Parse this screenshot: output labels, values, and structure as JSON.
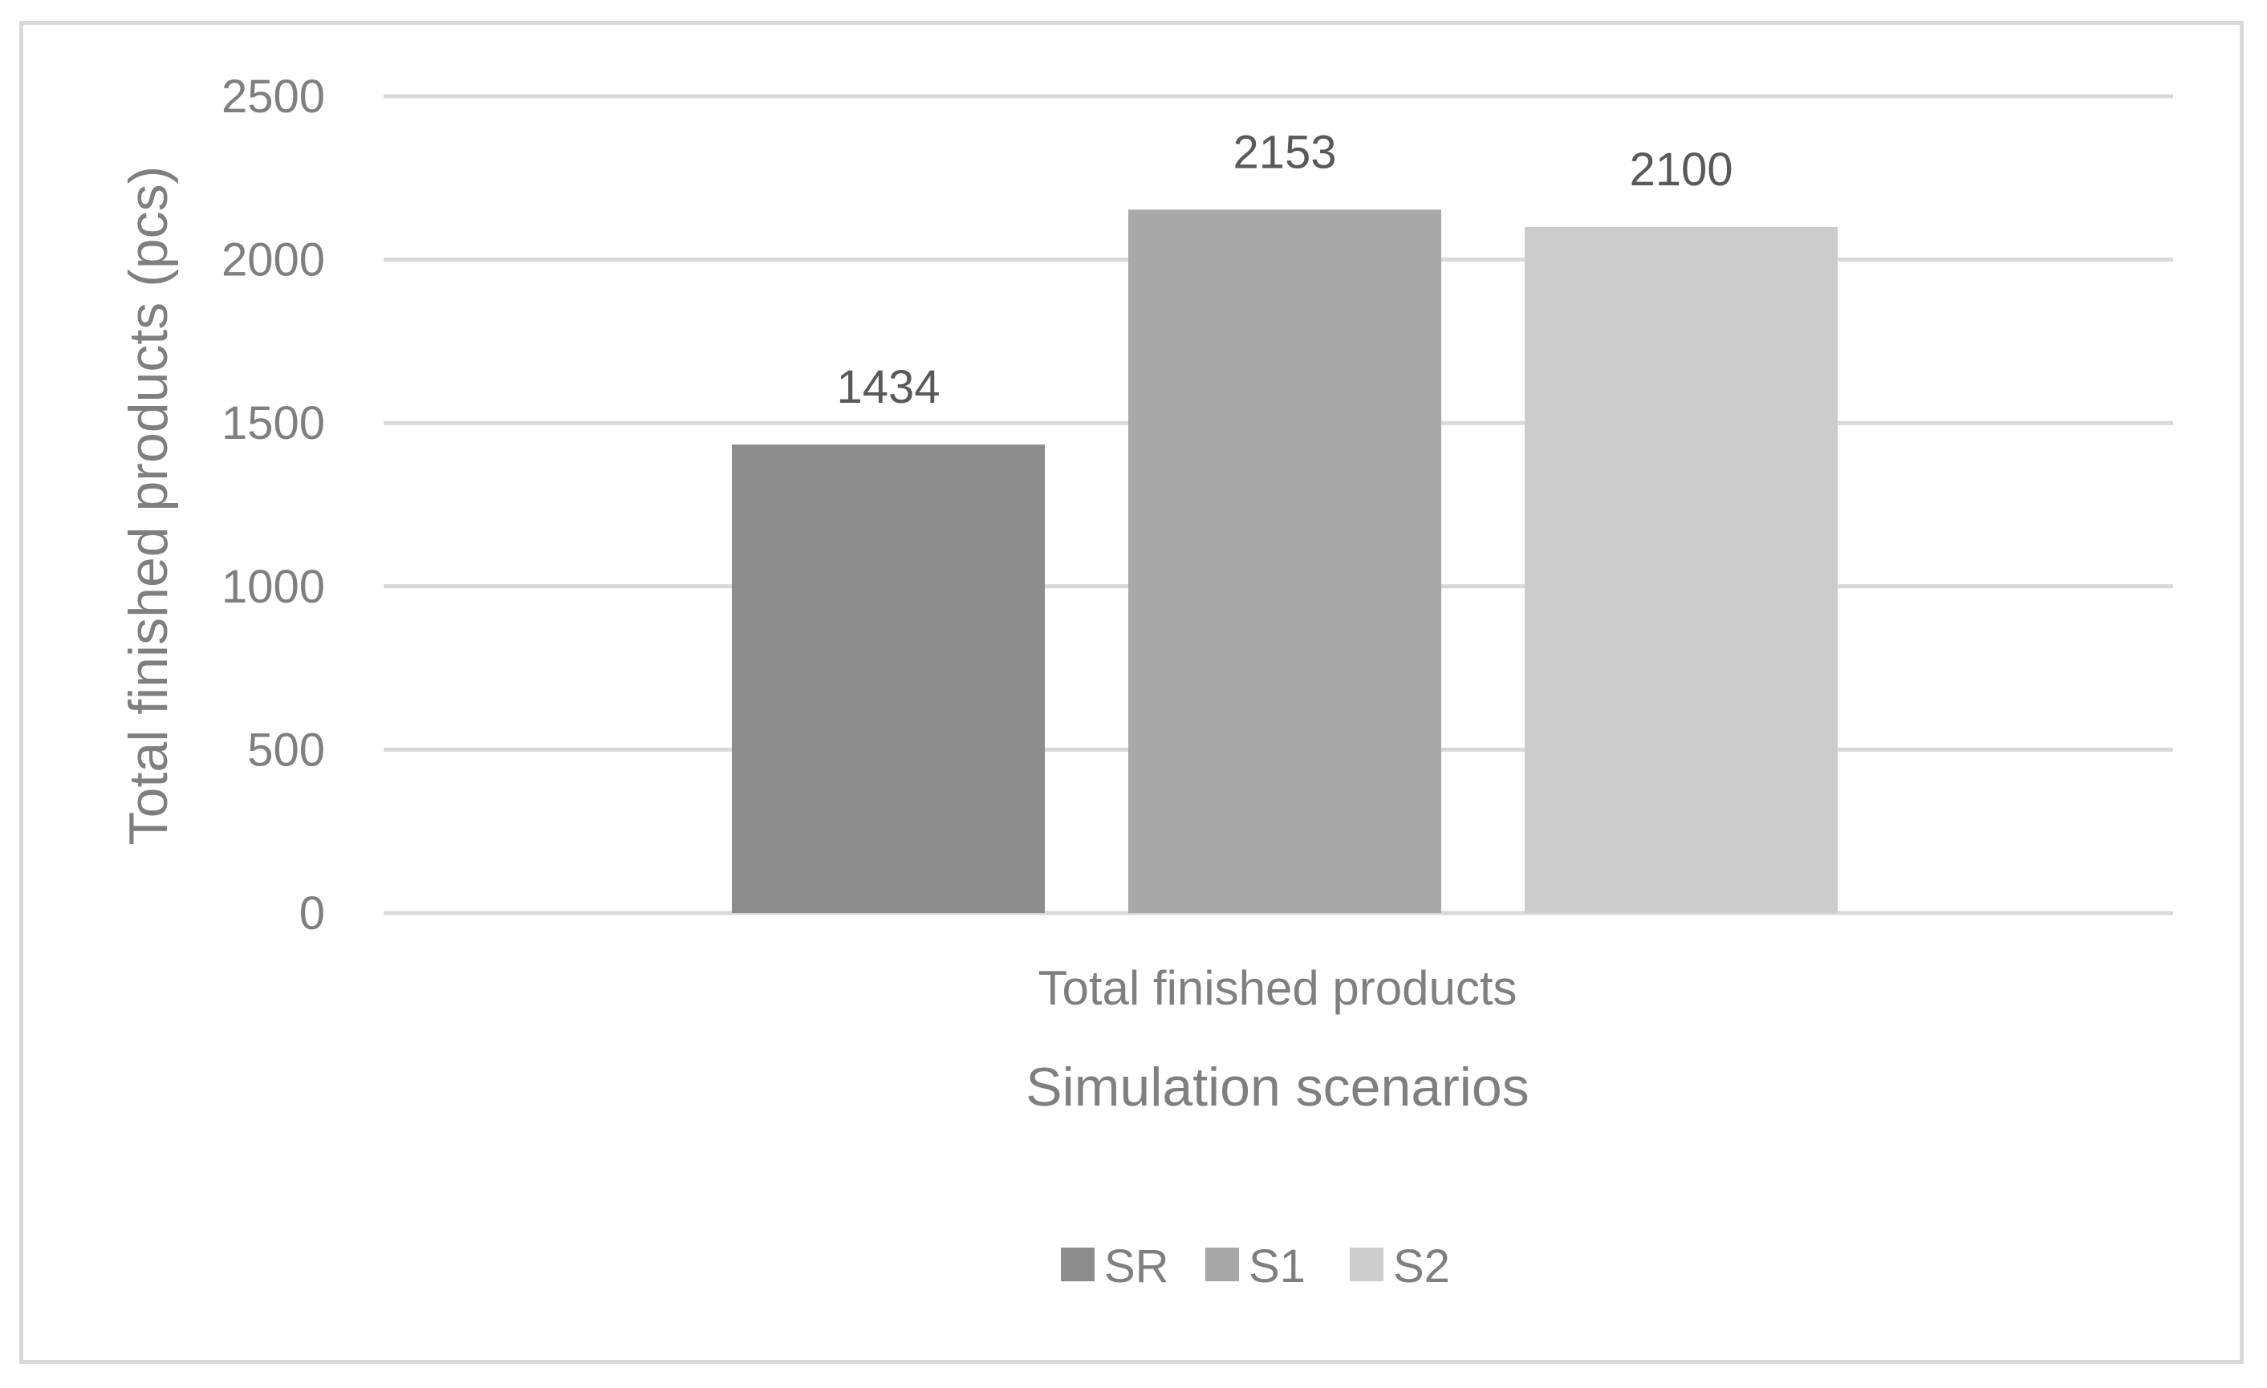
{
  "chart_data": {
    "type": "bar",
    "categories": [
      "Total finished products"
    ],
    "series": [
      {
        "name": "SR",
        "values": [
          1434
        ],
        "color": "#8c8c8c"
      },
      {
        "name": "S1",
        "values": [
          2153
        ],
        "color": "#a8a8a8"
      },
      {
        "name": "S2",
        "values": [
          2100
        ],
        "color": "#cccccc"
      }
    ],
    "xlabel": "Simulation scenarios",
    "ylabel": "Total finished products (pcs)",
    "ylim": [
      0,
      2500
    ],
    "yticks": [
      0,
      500,
      1000,
      1500,
      2000,
      2500
    ],
    "grid": true,
    "gridColor": "#d9d9d9",
    "legend_position": "bottom"
  }
}
